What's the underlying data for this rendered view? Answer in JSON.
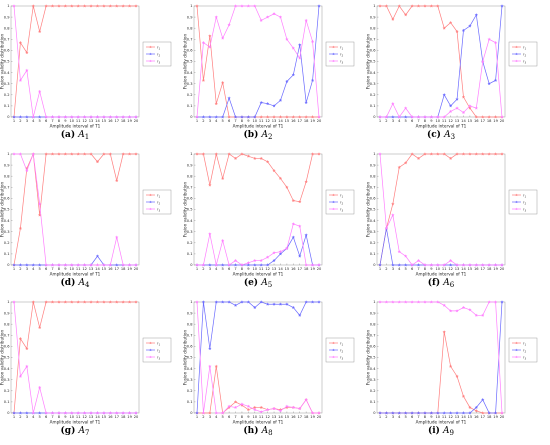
{
  "chart_data": [
    {
      "type": "line",
      "label": "(a)",
      "name": "A",
      "sub": "1",
      "xlabel": "Amplitude interval of T1",
      "ylabel": "Fusion validity distribution",
      "ylim": [
        0,
        1
      ],
      "categories": [
        1,
        2,
        3,
        4,
        5,
        6,
        7,
        8,
        9,
        10,
        11,
        12,
        13,
        14,
        15,
        16,
        17,
        18,
        19,
        20
      ],
      "series": [
        {
          "name": "r1",
          "color": "#ff7f7f",
          "marker": "star",
          "values": [
            0.0,
            0.67,
            0.58,
            1.0,
            0.77,
            1.0,
            1.0,
            1.0,
            1.0,
            1.0,
            1.0,
            1.0,
            1.0,
            1.0,
            1.0,
            1.0,
            1.0,
            1.0,
            1.0,
            1.0
          ]
        },
        {
          "name": "r2",
          "color": "#6a6aff",
          "marker": "star",
          "values": [
            0,
            0,
            0,
            0,
            0,
            0,
            0,
            0,
            0,
            0,
            0,
            0,
            0,
            0,
            0,
            0,
            0,
            0,
            0,
            0
          ]
        },
        {
          "name": "r3",
          "color": "#ff7fff",
          "marker": "star",
          "values": [
            1.0,
            0.33,
            0.42,
            0.0,
            0.23,
            0,
            0,
            0,
            0,
            0,
            0,
            0,
            0,
            0,
            0,
            0,
            0,
            0,
            0,
            0
          ]
        }
      ]
    },
    {
      "type": "line",
      "label": "(b)",
      "name": "A",
      "sub": "2",
      "xlabel": "Amplitude interval of T1",
      "ylabel": "Fusion validity distribution",
      "ylim": [
        0,
        1
      ],
      "categories": [
        1,
        2,
        3,
        4,
        5,
        6,
        7,
        8,
        9,
        10,
        11,
        12,
        13,
        14,
        15,
        16,
        17,
        18,
        19,
        20
      ],
      "series": [
        {
          "name": "r1",
          "color": "#ff7f7f",
          "marker": "star",
          "values": [
            1.0,
            0.33,
            0.73,
            0.12,
            0.31,
            0.0,
            0.0,
            0,
            0,
            0,
            0,
            0,
            0,
            0,
            0,
            0,
            0,
            0,
            0,
            0
          ]
        },
        {
          "name": "r2",
          "color": "#6a6aff",
          "marker": "star",
          "values": [
            0,
            0,
            0,
            0,
            0,
            0.17,
            0.0,
            0,
            0,
            0,
            0.13,
            0.12,
            0.1,
            0.15,
            0.32,
            0.38,
            0.65,
            0.13,
            0.33,
            1.0
          ]
        },
        {
          "name": "r3",
          "color": "#ff7fff",
          "marker": "star",
          "values": [
            0,
            0.67,
            0.63,
            0.9,
            0.71,
            0.83,
            1.0,
            1.0,
            1.0,
            1.0,
            0.87,
            0.9,
            0.93,
            0.9,
            0.7,
            0.62,
            0.53,
            0.87,
            0.68,
            0.0
          ]
        }
      ]
    },
    {
      "type": "line",
      "label": "(c)",
      "name": "A",
      "sub": "3",
      "xlabel": "Amplitude interval of T1",
      "ylabel": "Fusion validity distribution",
      "ylim": [
        0,
        1
      ],
      "categories": [
        1,
        2,
        3,
        4,
        5,
        6,
        7,
        8,
        9,
        10,
        11,
        12,
        13,
        14,
        15,
        16,
        17,
        18,
        19,
        20
      ],
      "series": [
        {
          "name": "r1",
          "color": "#ff7f7f",
          "marker": "star",
          "values": [
            1.0,
            1.0,
            0.88,
            1.0,
            0.92,
            1.0,
            1.0,
            1.0,
            1.0,
            1.0,
            0.8,
            0.85,
            0.77,
            0.18,
            0.08,
            0.0,
            0.0,
            0.0,
            0.0,
            0.0
          ]
        },
        {
          "name": "r2",
          "color": "#6a6aff",
          "marker": "star",
          "values": [
            0,
            0,
            0,
            0,
            0,
            0,
            0,
            0,
            0,
            0,
            0.2,
            0.1,
            0.16,
            0.78,
            0.82,
            0.92,
            0.5,
            0.3,
            0.33,
            1.0
          ]
        },
        {
          "name": "r3",
          "color": "#ff7fff",
          "marker": "star",
          "values": [
            0,
            0,
            0.12,
            0,
            0.08,
            0,
            0,
            0,
            0,
            0,
            0,
            0.05,
            0.08,
            0.04,
            0.1,
            0.08,
            0.5,
            0.7,
            0.67,
            0.0
          ]
        }
      ]
    },
    {
      "type": "line",
      "label": "(d)",
      "name": "A",
      "sub": "4",
      "xlabel": "Amplitude interval of T1",
      "ylabel": "Fusion validity distribution",
      "ylim": [
        0,
        1
      ],
      "categories": [
        1,
        2,
        3,
        4,
        5,
        6,
        7,
        8,
        9,
        10,
        11,
        12,
        13,
        14,
        15,
        16,
        17,
        18,
        19,
        20
      ],
      "series": [
        {
          "name": "r1",
          "color": "#ff7f7f",
          "marker": "star",
          "values": [
            0.0,
            0.33,
            0.87,
            1.0,
            0.45,
            1.0,
            1.0,
            1.0,
            1.0,
            1.0,
            1.0,
            1.0,
            1.0,
            0.93,
            1.0,
            1.0,
            0.76,
            1.0,
            1.0,
            1.0
          ]
        },
        {
          "name": "r2",
          "color": "#6a6aff",
          "marker": "star",
          "values": [
            0,
            0,
            0,
            0,
            0,
            0,
            0,
            0,
            0,
            0,
            0,
            0,
            0,
            0.08,
            0,
            0,
            0,
            0,
            0,
            0
          ]
        },
        {
          "name": "r3",
          "color": "#ff7fff",
          "marker": "star",
          "values": [
            1.0,
            1.0,
            0.85,
            1.0,
            0.55,
            0,
            0,
            0,
            0,
            0,
            0,
            0,
            0,
            0,
            0,
            0,
            0.25,
            0,
            0,
            0
          ]
        }
      ]
    },
    {
      "type": "line",
      "label": "(e)",
      "name": "A",
      "sub": "5",
      "xlabel": "Amplitude interval of T1",
      "ylabel": "Fusion validity distribution",
      "ylim": [
        0,
        1
      ],
      "categories": [
        1,
        2,
        3,
        4,
        5,
        6,
        7,
        8,
        9,
        10,
        11,
        12,
        13,
        14,
        15,
        16,
        17,
        18,
        19,
        20
      ],
      "series": [
        {
          "name": "r1",
          "color": "#ff7f7f",
          "marker": "star",
          "values": [
            1.0,
            1.0,
            0.72,
            1.0,
            0.78,
            1.0,
            0.96,
            1.0,
            0.98,
            0.96,
            0.96,
            0.93,
            0.85,
            0.78,
            0.7,
            0.58,
            0.57,
            0.75,
            1.0,
            1.0
          ]
        },
        {
          "name": "r2",
          "color": "#6a6aff",
          "marker": "star",
          "values": [
            0,
            0,
            0,
            0,
            0,
            0,
            0,
            0,
            0,
            0,
            0,
            0,
            0.04,
            0.1,
            0.15,
            0.25,
            0.08,
            0.27,
            0,
            0
          ]
        },
        {
          "name": "r3",
          "color": "#ff7fff",
          "marker": "star",
          "values": [
            0,
            0,
            0.28,
            0,
            0.22,
            0,
            0.04,
            0,
            0.02,
            0.04,
            0.04,
            0.07,
            0.11,
            0.12,
            0.15,
            0.37,
            0.35,
            0.0,
            0,
            0
          ]
        }
      ]
    },
    {
      "type": "line",
      "label": "(f)",
      "name": "A",
      "sub": "6",
      "xlabel": "Amplitude interval of T1",
      "ylabel": "Fusion validity distribution",
      "ylim": [
        0,
        1
      ],
      "categories": [
        1,
        2,
        3,
        4,
        5,
        6,
        7,
        8,
        9,
        10,
        11,
        12,
        13,
        14,
        15,
        16,
        17,
        18,
        19,
        20
      ],
      "series": [
        {
          "name": "r1",
          "color": "#ff7f7f",
          "marker": "star",
          "values": [
            0.0,
            0.33,
            0.55,
            0.88,
            0.92,
            1.0,
            0.96,
            1.0,
            1.0,
            1.0,
            1.0,
            0.96,
            1.0,
            1.0,
            1.0,
            1.0,
            1.0,
            1.0,
            1.0,
            1.0
          ]
        },
        {
          "name": "r2",
          "color": "#6a6aff",
          "marker": "star",
          "values": [
            0,
            0.33,
            0,
            0,
            0,
            0,
            0,
            0,
            0,
            0,
            0,
            0,
            0,
            0,
            0,
            0,
            0,
            0,
            0,
            0
          ]
        },
        {
          "name": "r3",
          "color": "#ff7fff",
          "marker": "star",
          "values": [
            1.0,
            0.33,
            0.45,
            0.12,
            0.08,
            0.0,
            0.04,
            0,
            0,
            0,
            0,
            0.04,
            0,
            0,
            0,
            0,
            0,
            0,
            0,
            0
          ]
        }
      ]
    },
    {
      "type": "line",
      "label": "(g)",
      "name": "A",
      "sub": "7",
      "xlabel": "Amplitude interval of T1",
      "ylabel": "Fusion validity distribution",
      "ylim": [
        0,
        1
      ],
      "categories": [
        1,
        2,
        3,
        4,
        5,
        6,
        7,
        8,
        9,
        10,
        11,
        12,
        13,
        14,
        15,
        16,
        17,
        18,
        19,
        20
      ],
      "series": [
        {
          "name": "r1",
          "color": "#ff7f7f",
          "marker": "star",
          "values": [
            0.0,
            0.67,
            0.58,
            1.0,
            0.77,
            1.0,
            1.0,
            1.0,
            1.0,
            1.0,
            1.0,
            1.0,
            1.0,
            1.0,
            1.0,
            1.0,
            1.0,
            1.0,
            1.0,
            1.0
          ]
        },
        {
          "name": "r2",
          "color": "#6a6aff",
          "marker": "star",
          "values": [
            0,
            0,
            0,
            0,
            0,
            0,
            0,
            0,
            0,
            0,
            0,
            0,
            0,
            0,
            0,
            0,
            0,
            0,
            0,
            0
          ]
        },
        {
          "name": "r3",
          "color": "#ff7fff",
          "marker": "star",
          "values": [
            1.0,
            0.33,
            0.42,
            0.0,
            0.23,
            0,
            0,
            0,
            0,
            0,
            0,
            0,
            0,
            0,
            0,
            0,
            0,
            0,
            0,
            0
          ]
        }
      ]
    },
    {
      "type": "line",
      "label": "(h)",
      "name": "A",
      "sub": "8",
      "xlabel": "Amplitude interval of T1",
      "ylabel": "Fusion validity distribution",
      "ylim": [
        0,
        1
      ],
      "categories": [
        1,
        2,
        3,
        4,
        5,
        6,
        7,
        8,
        9,
        10,
        11,
        12,
        13,
        14,
        15,
        16,
        17,
        18,
        19,
        20
      ],
      "series": [
        {
          "name": "r1",
          "color": "#ff7f7f",
          "marker": "star",
          "values": [
            0,
            0,
            0,
            0.42,
            0,
            0.05,
            0.1,
            0.07,
            0.03,
            0.05,
            0.05,
            0.03,
            0.04,
            0.03,
            0.05,
            0.05,
            0.04,
            0.12,
            0,
            0
          ]
        },
        {
          "name": "r2",
          "color": "#6a6aff",
          "marker": "star",
          "values": [
            0,
            1.0,
            0.58,
            1.0,
            1.0,
            1.0,
            0.97,
            1.0,
            1.0,
            0.95,
            1.0,
            0.98,
            0.98,
            0.98,
            0.98,
            0.95,
            0.88,
            1.0,
            1.0,
            1.0
          ]
        },
        {
          "name": "r3",
          "color": "#ff7fff",
          "marker": "star",
          "values": [
            1.0,
            0,
            0.42,
            0,
            0,
            0.06,
            0.05,
            0.08,
            0.06,
            0.03,
            0.01,
            0.03,
            0.04,
            0.02,
            0.06,
            0.05,
            0.04,
            0.12,
            0,
            0
          ]
        }
      ]
    },
    {
      "type": "line",
      "label": "(i)",
      "name": "A",
      "sub": "9",
      "xlabel": "Amplitude interval of T1",
      "ylabel": "Fusion validity distribution",
      "ylim": [
        0,
        1
      ],
      "categories": [
        1,
        2,
        3,
        4,
        5,
        6,
        7,
        8,
        9,
        10,
        11,
        12,
        13,
        14,
        15,
        16,
        17,
        18,
        19,
        20
      ],
      "series": [
        {
          "name": "r1",
          "color": "#ff7f7f",
          "marker": "star",
          "values": [
            0,
            0,
            0,
            0,
            0,
            0,
            0,
            0,
            0,
            0,
            0.73,
            0.42,
            0.33,
            0.15,
            0.05,
            0.02,
            0.0,
            0.0,
            0.0,
            0.0
          ]
        },
        {
          "name": "r2",
          "color": "#6a6aff",
          "marker": "star",
          "values": [
            0,
            0,
            0,
            0,
            0,
            0,
            0,
            0,
            0,
            0,
            0,
            0,
            0,
            0,
            0,
            0.05,
            0.12,
            0.0,
            0.0,
            1.0
          ]
        },
        {
          "name": "r3",
          "color": "#ff7fff",
          "marker": "star",
          "values": [
            1.0,
            1.0,
            1.0,
            1.0,
            1.0,
            1.0,
            1.0,
            1.0,
            1.0,
            1.0,
            0.97,
            0.92,
            0.92,
            0.95,
            0.93,
            0.88,
            0.88,
            1.0,
            1.0,
            0.0
          ]
        }
      ]
    }
  ]
}
